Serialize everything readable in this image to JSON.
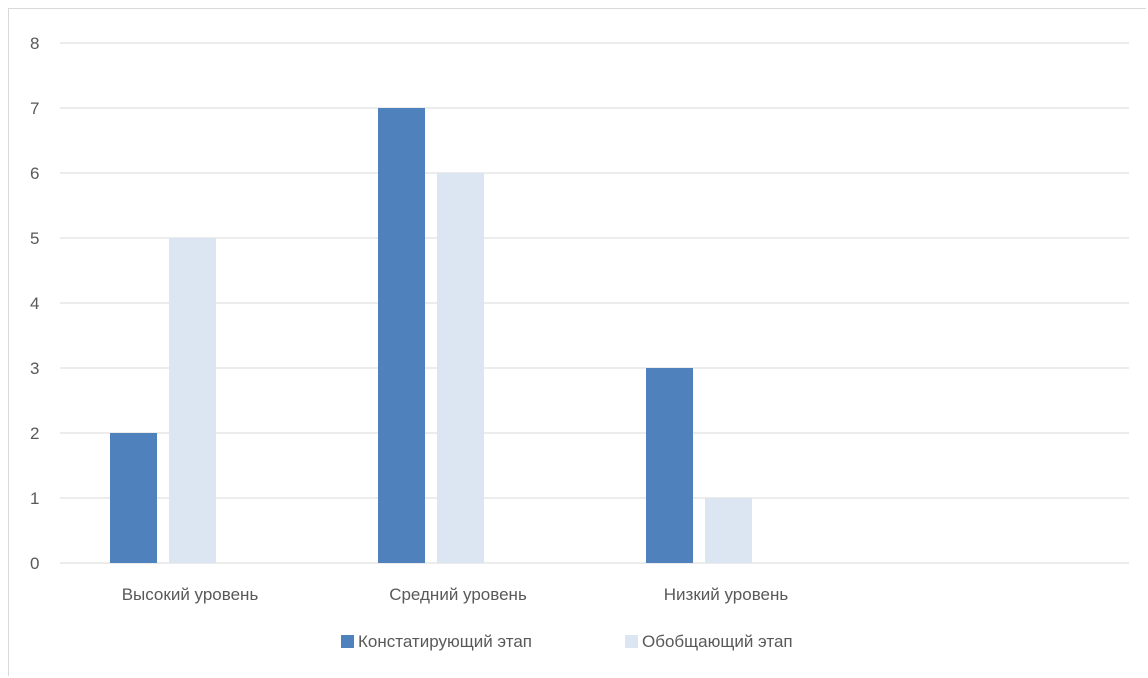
{
  "chart_data": {
    "type": "bar",
    "title": "",
    "xlabel": "",
    "ylabel": "",
    "categories": [
      "Высокий уровень",
      "Средний уровень",
      "Низкий уровень",
      ""
    ],
    "series": [
      {
        "name": "Констатирующий этап",
        "values": [
          2,
          7,
          3,
          null
        ],
        "color": "#4f81bd"
      },
      {
        "name": "Обобщающий этап",
        "values": [
          5,
          6,
          1,
          null
        ],
        "color": "#dce6f2"
      }
    ],
    "ylim": [
      0,
      8
    ],
    "yticks": [
      0,
      1,
      2,
      3,
      4,
      5,
      6,
      7,
      8
    ],
    "grid": true,
    "legend": "bottom"
  }
}
